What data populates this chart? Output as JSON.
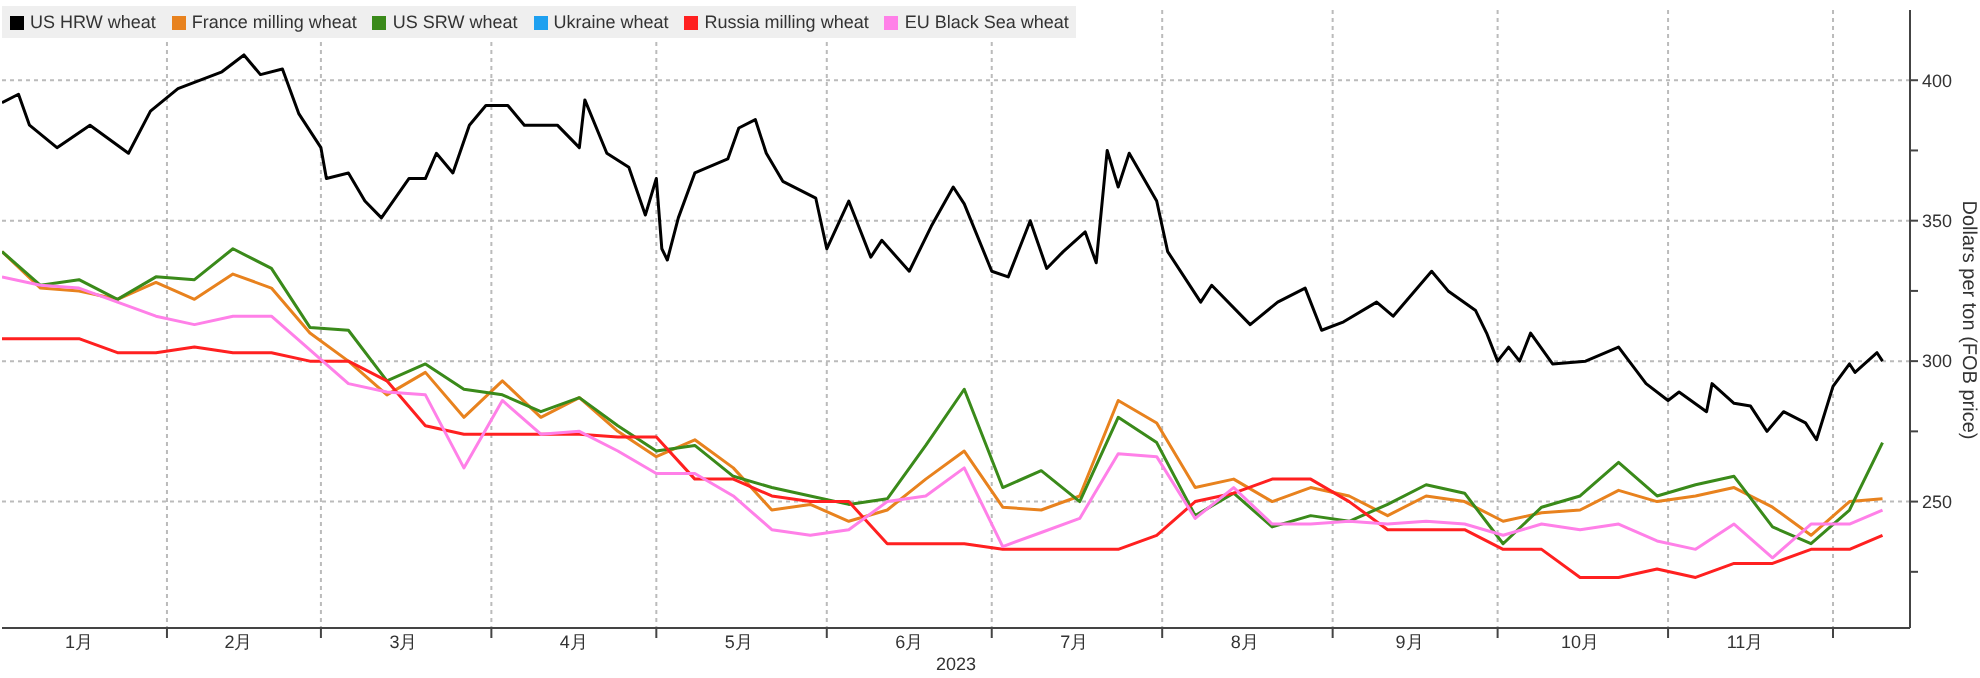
{
  "chart_data": {
    "type": "line",
    "xlabel": "2023",
    "ylabel": "Dollars per ton (FOB price)",
    "legend": "top left",
    "grid": true,
    "xlim": [
      "2023-01-02",
      "2023-12-15"
    ],
    "xticks": [
      {
        "value": "2023-01-16",
        "label": "1月"
      },
      {
        "value": "2023-02-01",
        "label": null
      },
      {
        "value": "2023-02-14",
        "label": "2月"
      },
      {
        "value": "2023-03-01",
        "label": null
      },
      {
        "value": "2023-03-16",
        "label": "3月"
      },
      {
        "value": "2023-04-01",
        "label": null
      },
      {
        "value": "2023-04-16",
        "label": "4月"
      },
      {
        "value": "2023-05-01",
        "label": null
      },
      {
        "value": "2023-05-16",
        "label": "5月"
      },
      {
        "value": "2023-06-01",
        "label": null
      },
      {
        "value": "2023-06-16",
        "label": "6月"
      },
      {
        "value": "2023-07-01",
        "label": null
      },
      {
        "value": "2023-07-16",
        "label": "7月"
      },
      {
        "value": "2023-08-01",
        "label": null
      },
      {
        "value": "2023-08-16",
        "label": "8月"
      },
      {
        "value": "2023-09-01",
        "label": null
      },
      {
        "value": "2023-09-15",
        "label": "9月"
      },
      {
        "value": "2023-10-01",
        "label": null
      },
      {
        "value": "2023-10-16",
        "label": "10月"
      },
      {
        "value": "2023-11-01",
        "label": null
      },
      {
        "value": "2023-11-15",
        "label": "11月"
      },
      {
        "value": "2023-12-01",
        "label": null
      }
    ],
    "ylim": [
      205,
      425
    ],
    "yticks": [
      {
        "value": 225,
        "label": null
      },
      250,
      {
        "value": 275,
        "label": null
      },
      300,
      {
        "value": 325,
        "label": null
      },
      350,
      {
        "value": 375,
        "label": null
      },
      400
    ],
    "x": [
      "2023-01-02",
      "2023-01-09",
      "2023-01-16",
      "2023-01-23",
      "2023-01-30",
      "2023-02-06",
      "2023-02-13",
      "2023-02-20",
      "2023-02-27",
      "2023-03-06",
      "2023-03-13",
      "2023-03-20",
      "2023-03-27",
      "2023-04-03",
      "2023-04-10",
      "2023-04-17",
      "2023-04-24",
      "2023-05-01",
      "2023-05-08",
      "2023-05-15",
      "2023-05-22",
      "2023-05-29",
      "2023-06-05",
      "2023-06-12",
      "2023-06-19",
      "2023-06-26",
      "2023-07-03",
      "2023-07-10",
      "2023-07-17",
      "2023-07-24",
      "2023-07-31",
      "2023-08-07",
      "2023-08-14",
      "2023-08-21",
      "2023-08-28",
      "2023-09-04",
      "2023-09-11",
      "2023-09-18",
      "2023-09-25",
      "2023-10-02",
      "2023-10-09",
      "2023-10-16",
      "2023-10-23",
      "2023-10-30",
      "2023-11-06",
      "2023-11-13",
      "2023-11-20",
      "2023-11-27",
      "2023-12-04",
      "2023-12-10"
    ],
    "series": [
      {
        "name": "US HRW wheat",
        "color": "#000000",
        "x": [
          "2023-01-02",
          "2023-01-05",
          "2023-01-07",
          "2023-01-12",
          "2023-01-18",
          "2023-01-25",
          "2023-01-29",
          "2023-02-03",
          "2023-02-11",
          "2023-02-15",
          "2023-02-18",
          "2023-02-22",
          "2023-02-25",
          "2023-03-01",
          "2023-03-02",
          "2023-03-06",
          "2023-03-09",
          "2023-03-12",
          "2023-03-17",
          "2023-03-20",
          "2023-03-22",
          "2023-03-25",
          "2023-03-28",
          "2023-03-31",
          "2023-04-04",
          "2023-04-07",
          "2023-04-13",
          "2023-04-17",
          "2023-04-18",
          "2023-04-22",
          "2023-04-26",
          "2023-04-29",
          "2023-05-01",
          "2023-05-02",
          "2023-05-03",
          "2023-05-05",
          "2023-05-08",
          "2023-05-14",
          "2023-05-16",
          "2023-05-19",
          "2023-05-21",
          "2023-05-24",
          "2023-05-30",
          "2023-06-01",
          "2023-06-05",
          "2023-06-09",
          "2023-06-11",
          "2023-06-16",
          "2023-06-20",
          "2023-06-24",
          "2023-06-26",
          "2023-07-01",
          "2023-07-04",
          "2023-07-08",
          "2023-07-11",
          "2023-07-14",
          "2023-07-18",
          "2023-07-20",
          "2023-07-22",
          "2023-07-24",
          "2023-07-26",
          "2023-07-31",
          "2023-08-02",
          "2023-08-08",
          "2023-08-10",
          "2023-08-17",
          "2023-08-22",
          "2023-08-27",
          "2023-08-30",
          "2023-09-03",
          "2023-09-09",
          "2023-09-12",
          "2023-09-19",
          "2023-09-22",
          "2023-09-27",
          "2023-09-29",
          "2023-10-01",
          "2023-10-03",
          "2023-10-05",
          "2023-10-07",
          "2023-10-11",
          "2023-10-17",
          "2023-10-23",
          "2023-10-28",
          "2023-11-01",
          "2023-11-03",
          "2023-11-08",
          "2023-11-09",
          "2023-11-13",
          "2023-11-16",
          "2023-11-19",
          "2023-11-22",
          "2023-11-26",
          "2023-11-28",
          "2023-12-01",
          "2023-12-04",
          "2023-12-05",
          "2023-12-09",
          "2023-12-10"
        ],
        "values": [
          392,
          395,
          384,
          376,
          384,
          374,
          389,
          397,
          403,
          409,
          402,
          404,
          388,
          376,
          365,
          367,
          357,
          351,
          365,
          365,
          374,
          367,
          384,
          391,
          391,
          384,
          384,
          376,
          393,
          374,
          369,
          352,
          365,
          340,
          336,
          351,
          367,
          372,
          383,
          386,
          374,
          364,
          358,
          340,
          357,
          337,
          343,
          332,
          348,
          362,
          356,
          332,
          330,
          350,
          333,
          339,
          346,
          335,
          375,
          362,
          374,
          357,
          339,
          321,
          327,
          313,
          321,
          326,
          311,
          314,
          321,
          316,
          332,
          325,
          318,
          310,
          300,
          305,
          300,
          310,
          299,
          300,
          305,
          292,
          286,
          289,
          282,
          292,
          285,
          284,
          275,
          282,
          278,
          272,
          291,
          299,
          296,
          303,
          300
        ]
      },
      {
        "name": "France milling wheat",
        "color": "#e8821e",
        "values": [
          339,
          326,
          325,
          322,
          328,
          322,
          331,
          326,
          310,
          300,
          288,
          296,
          280,
          293,
          280,
          287,
          275,
          266,
          272,
          262,
          247,
          249,
          243,
          247,
          258,
          268,
          248,
          247,
          252,
          286,
          278,
          255,
          258,
          250,
          255,
          252,
          245,
          252,
          250,
          243,
          246,
          247,
          254,
          250,
          252,
          255,
          248,
          238,
          250,
          251
        ]
      },
      {
        "name": "US SRW wheat",
        "color": "#3a8a1a",
        "values": [
          339,
          327,
          329,
          322,
          330,
          329,
          340,
          333,
          312,
          311,
          293,
          299,
          290,
          288,
          282,
          287,
          277,
          268,
          270,
          259,
          255,
          252,
          249,
          251,
          270,
          290,
          255,
          261,
          250,
          280,
          271,
          245,
          253,
          241,
          245,
          243,
          249,
          256,
          253,
          235,
          248,
          252,
          264,
          252,
          256,
          259,
          241,
          235,
          247,
          271
        ]
      },
      {
        "name": "Ukraine wheat",
        "color": "#1ea0f0",
        "values": [
          null,
          null,
          null,
          null,
          null,
          null,
          null,
          null,
          null,
          null,
          null,
          null,
          null,
          null,
          null,
          null,
          null,
          null,
          null,
          null,
          null,
          null,
          null,
          null,
          null,
          null,
          null,
          null,
          null,
          null,
          null,
          null,
          null,
          null,
          null,
          null,
          null,
          null,
          null,
          null,
          null,
          null,
          null,
          null,
          null,
          null,
          null,
          null,
          null,
          null
        ]
      },
      {
        "name": "Russia milling wheat",
        "color": "#ff2020",
        "values": [
          308,
          308,
          308,
          303,
          303,
          305,
          303,
          303,
          300,
          300,
          293,
          277,
          274,
          274,
          274,
          274,
          273,
          273,
          258,
          258,
          252,
          250,
          250,
          235,
          235,
          235,
          233,
          233,
          233,
          233,
          238,
          250,
          253,
          258,
          258,
          250,
          240,
          240,
          240,
          233,
          233,
          223,
          223,
          226,
          223,
          228,
          228,
          233,
          233,
          238
        ]
      },
      {
        "name": "EU Black Sea wheat",
        "color": "#ff80e8",
        "values": [
          330,
          327,
          326,
          321,
          316,
          313,
          316,
          316,
          304,
          292,
          289,
          288,
          262,
          286,
          274,
          275,
          268,
          260,
          260,
          252,
          240,
          238,
          240,
          250,
          252,
          262,
          234,
          239,
          244,
          267,
          266,
          244,
          255,
          242,
          242,
          243,
          242,
          243,
          242,
          238,
          242,
          240,
          242,
          236,
          233,
          242,
          230,
          242,
          242,
          247
        ]
      }
    ]
  }
}
